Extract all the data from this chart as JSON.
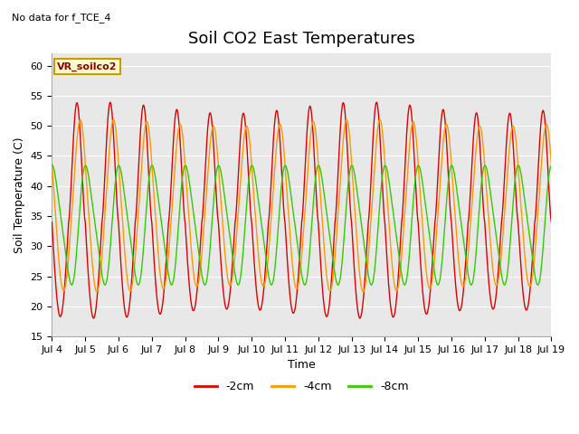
{
  "title": "Soil CO2 East Temperatures",
  "subtitle": "No data for f_TCE_4",
  "xlabel": "Time",
  "ylabel": "Soil Temperature (C)",
  "ylim": [
    15,
    62
  ],
  "xlim": [
    0,
    15
  ],
  "x_tick_labels": [
    "Jul 4",
    "Jul 5",
    "Jul 6",
    "Jul 7",
    "Jul 8",
    "Jul 9",
    "Jul 10",
    "Jul 11",
    "Jul 12",
    "Jul 13",
    "Jul 14",
    "Jul 15",
    "Jul 16",
    "Jul 17",
    "Jul 18",
    "Jul 19"
  ],
  "legend_box_label": "VR_soilco2",
  "legend_entries": [
    "-2cm",
    "-4cm",
    "-8cm"
  ],
  "line_colors": [
    "#dd0000",
    "#ff9900",
    "#33cc00"
  ],
  "fig_bg_color": "#ffffff",
  "plot_bg_color": "#e8e8e8",
  "grid_color": "#ffffff",
  "title_fontsize": 13,
  "label_fontsize": 9,
  "tick_fontsize": 8,
  "yticks": [
    15,
    20,
    25,
    30,
    35,
    40,
    45,
    50,
    55,
    60
  ]
}
